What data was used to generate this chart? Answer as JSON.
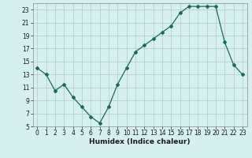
{
  "x": [
    0,
    1,
    2,
    3,
    4,
    5,
    6,
    7,
    8,
    9,
    10,
    11,
    12,
    13,
    14,
    15,
    16,
    17,
    18,
    19,
    20,
    21,
    22,
    23
  ],
  "y": [
    14,
    13,
    10.5,
    11.5,
    9.5,
    8,
    6.5,
    5.5,
    8,
    11.5,
    14,
    16.5,
    17.5,
    18.5,
    19.5,
    20.5,
    22.5,
    23.5,
    23.5,
    23.5,
    23.5,
    18,
    14.5,
    13
  ],
  "line_color": "#1a6b5a",
  "marker": "D",
  "marker_size": 2,
  "bg_color": "#d6f0f0",
  "grid_color": "#b0c8c8",
  "xlabel": "Humidex (Indice chaleur)",
  "xlim": [
    -0.5,
    23.5
  ],
  "ylim": [
    5,
    24
  ],
  "yticks": [
    5,
    7,
    9,
    11,
    13,
    15,
    17,
    19,
    21,
    23
  ],
  "xticks": [
    0,
    1,
    2,
    3,
    4,
    5,
    6,
    7,
    8,
    9,
    10,
    11,
    12,
    13,
    14,
    15,
    16,
    17,
    18,
    19,
    20,
    21,
    22,
    23
  ],
  "tick_fontsize": 5.5,
  "xlabel_fontsize": 6.5
}
